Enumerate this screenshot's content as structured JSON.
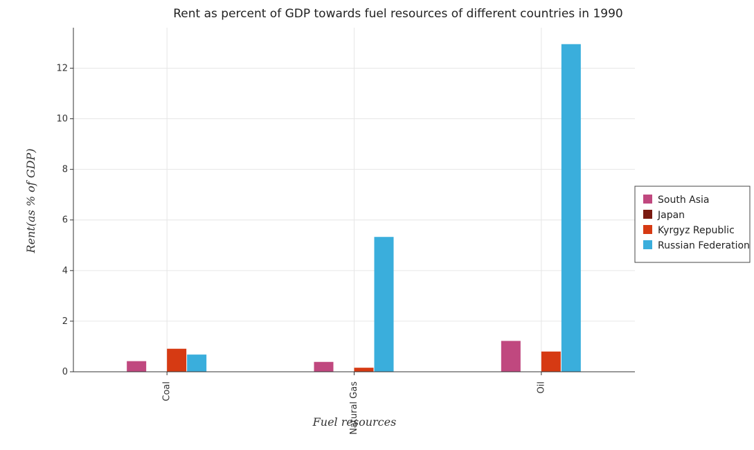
{
  "chart_data": {
    "type": "bar",
    "title": "Rent as percent of GDP towards fuel resources of different countries in 1990",
    "xlabel": "Fuel resources",
    "ylabel": "Rent(as % of GDP)",
    "categories": [
      "Coal",
      "Natural Gas",
      "Oil"
    ],
    "ylim": [
      0,
      13.6
    ],
    "yticks": [
      0,
      2,
      4,
      6,
      8,
      10,
      12
    ],
    "grid": true,
    "legend_position": "right",
    "series": [
      {
        "name": "South Asia",
        "color": "#c0487f",
        "values": [
          0.42,
          0.39,
          1.22
        ]
      },
      {
        "name": "Japan",
        "color": "#7a1a10",
        "values": [
          0.0,
          0.005,
          0.005
        ]
      },
      {
        "name": "Kyrgyz Republic",
        "color": "#d63a13",
        "values": [
          0.91,
          0.16,
          0.8
        ]
      },
      {
        "name": "Russian Federation",
        "color": "#3aaedc",
        "values": [
          0.68,
          5.33,
          12.95
        ]
      }
    ]
  }
}
